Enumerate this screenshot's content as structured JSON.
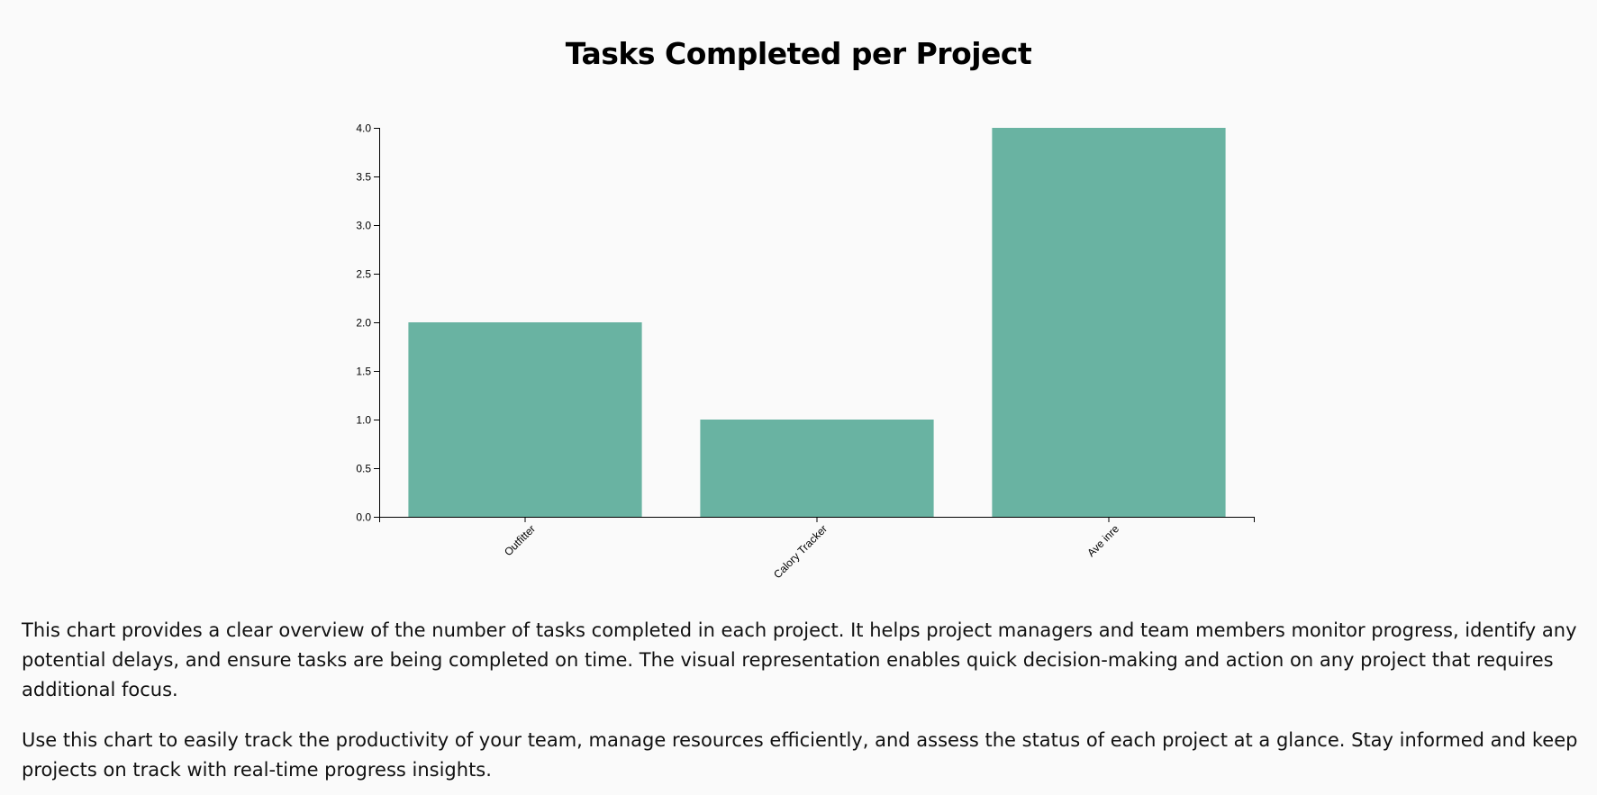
{
  "page": {
    "title": "Tasks Completed per Project",
    "paragraphs": [
      "This chart provides a clear overview of the number of tasks completed in each project. It helps project managers and team members monitor progress, identify any potential delays, and ensure tasks are being completed on time. The visual representation enables quick decision-making and action on any project that requires additional focus.",
      "Use this chart to easily track the productivity of your team, manage resources efficiently, and assess the status of each project at a glance. Stay informed and keep projects on track with real-time progress insights."
    ]
  },
  "colors": {
    "bar": "#69b3a2",
    "axis": "#000000",
    "background": "#fafafa"
  },
  "chart_data": {
    "type": "bar",
    "title": "Tasks Completed per Project",
    "categories": [
      "Outfitter",
      "Calory Tracker",
      "Ave inre"
    ],
    "values": [
      2,
      1,
      4
    ],
    "xlabel": "",
    "ylabel": "",
    "ylim": [
      0,
      4
    ],
    "yticks": [
      "0.0",
      "0.5",
      "1.0",
      "1.5",
      "2.0",
      "2.5",
      "3.0",
      "3.5",
      "4.0"
    ],
    "grid": false,
    "legend": "none",
    "x_tick_rotation": "-45deg"
  }
}
